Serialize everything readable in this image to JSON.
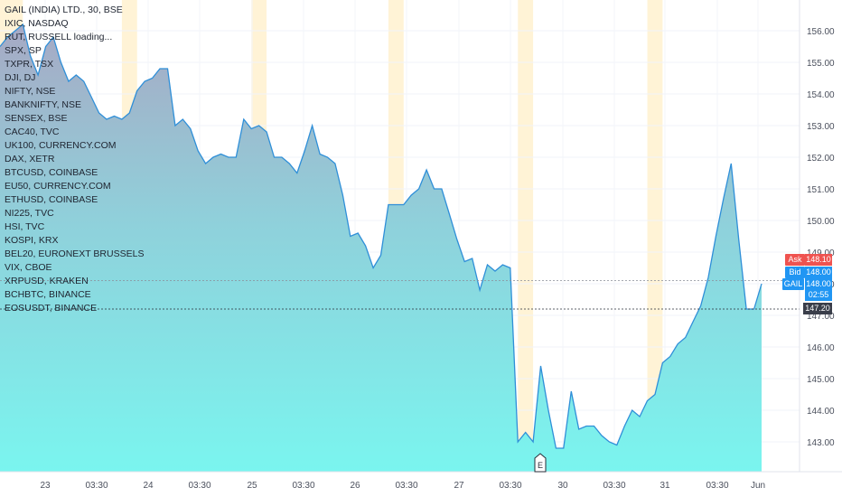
{
  "legend": {
    "items": [
      "GAIL (INDIA) LTD., 30, BSE",
      "IXIC, NASDAQ",
      "RUT, RUSSELL loading...",
      "SPX, SP",
      "TXPR, TSX",
      "DJI, DJ",
      "NIFTY, NSE",
      "BANKNIFTY, NSE",
      "SENSEX, BSE",
      "CAC40, TVC",
      "UK100, CURRENCY.COM",
      "DAX, XETR",
      "BTCUSD, COINBASE",
      "EU50, CURRENCY.COM",
      "ETHUSD, COINBASE",
      "NI225, TVC",
      "HSI, TVC",
      "KOSPI, KRX",
      "BEL20, EURONEXT BRUSSELS",
      "VIX, CBOE",
      "XRPUSD, KRAKEN",
      "BCHBTC, BINANCE",
      "EOSUSDT, BINANCE"
    ]
  },
  "price_tags": {
    "ask_label": "Ask",
    "ask_value": "148.10",
    "bid_label": "Bid",
    "bid_value": "148.00",
    "symbol_label": "GAIL",
    "last_value": "148.00",
    "countdown": "02:55",
    "line_value": "147.20"
  },
  "earnings_marker": "E",
  "colors": {
    "line": "#2f8fd8",
    "ask": "#ef5350",
    "bid": "#2196f3",
    "session_highlight": "#fff3d6"
  },
  "chart_data": {
    "type": "area",
    "series_name": "GAIL (INDIA) LTD., 30, BSE",
    "y_ticks": [
      143,
      144,
      145,
      146,
      147,
      148,
      149,
      150,
      151,
      152,
      153,
      154,
      155,
      156
    ],
    "y_tick_labels": [
      "143.00",
      "144.00",
      "145.00",
      "146.00",
      "147.00",
      "148.00",
      "149.00",
      "150.00",
      "151.00",
      "152.00",
      "153.00",
      "154.00",
      "155.00",
      "156.00"
    ],
    "ylim": [
      142.3,
      156.6
    ],
    "x_tick_labels": [
      "23",
      "03:30",
      "24",
      "03:30",
      "25",
      "03:30",
      "26",
      "03:30",
      "27",
      "03:30",
      "30",
      "03:30",
      "31",
      "03:30",
      "Jun"
    ],
    "values": [
      155.5,
      155.8,
      156.0,
      156.2,
      155.2,
      154.6,
      155.5,
      155.8,
      155.0,
      154.4,
      154.6,
      154.4,
      153.9,
      153.4,
      153.2,
      153.3,
      153.2,
      153.4,
      154.1,
      154.4,
      154.5,
      154.8,
      154.8,
      153.0,
      153.2,
      152.9,
      152.2,
      151.8,
      152.0,
      152.1,
      152.0,
      152.0,
      153.2,
      152.9,
      153.0,
      152.8,
      152.0,
      152.0,
      151.8,
      151.5,
      152.2,
      153.0,
      152.1,
      152.0,
      151.8,
      150.8,
      149.5,
      149.6,
      149.2,
      148.5,
      148.9,
      150.5,
      150.5,
      150.5,
      150.8,
      151.0,
      151.6,
      151.0,
      151.0,
      150.2,
      149.4,
      148.7,
      148.8,
      147.8,
      148.6,
      148.4,
      148.6,
      148.5,
      143.0,
      143.3,
      143.0,
      145.4,
      144.0,
      142.8,
      142.8,
      144.6,
      143.4,
      143.5,
      143.5,
      143.2,
      143.0,
      142.9,
      143.5,
      144.0,
      143.8,
      144.3,
      144.5,
      145.5,
      145.7,
      146.1,
      146.3,
      146.8,
      147.3,
      148.2,
      149.5,
      150.7,
      151.8,
      149.4,
      147.2,
      147.2,
      148.0
    ],
    "session_bands": [
      [
        0,
        3
      ],
      [
        16,
        18
      ],
      [
        33,
        35
      ],
      [
        51,
        53
      ],
      [
        68,
        70
      ],
      [
        85,
        87
      ]
    ],
    "reference_lines": [
      148.1,
      147.2
    ],
    "grid": true
  }
}
